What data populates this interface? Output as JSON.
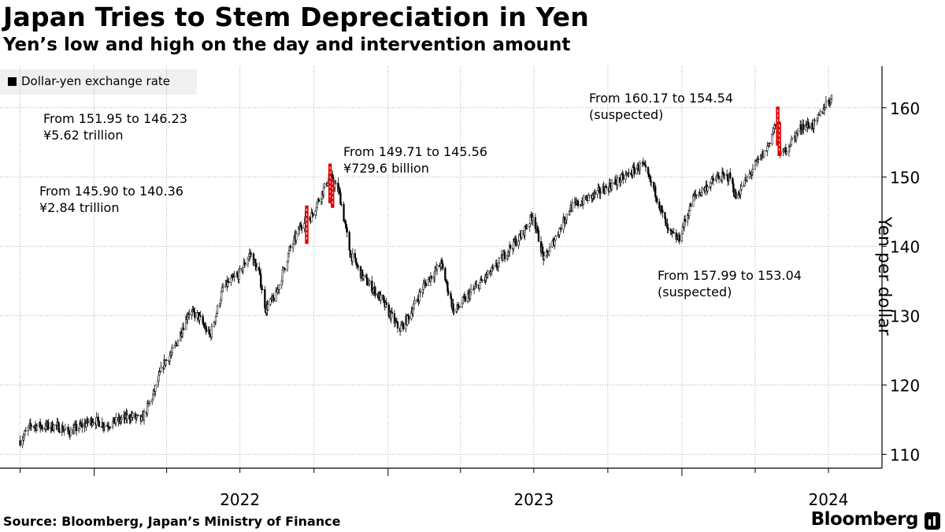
{
  "chart_data": {
    "type": "candlestick",
    "title": "Japan Tries to Stem Depreciation in Yen",
    "subtitle": "Yen’s low and high on the day and intervention amount",
    "legend": "Dollar-yen exchange rate",
    "ylabel": "Yen per dollar",
    "ylim": [
      108,
      166
    ],
    "yticks": [
      110,
      120,
      130,
      140,
      150,
      160
    ],
    "xticks": [
      "2022",
      "2023",
      "2024"
    ],
    "source": "Source: Bloomberg, Japan’s Ministry of Finance",
    "brand": "Bloomberg",
    "series_anchors": [
      [
        "2021-10-01",
        112
      ],
      [
        "2021-10-15",
        114.2
      ],
      [
        "2021-11-01",
        114.0
      ],
      [
        "2021-11-15",
        114.1
      ],
      [
        "2021-12-01",
        113.2
      ],
      [
        "2021-12-31",
        115.0
      ],
      [
        "2022-01-15",
        114.2
      ],
      [
        "2022-02-15",
        115.5
      ],
      [
        "2022-03-01",
        114.9
      ],
      [
        "2022-03-15",
        118.5
      ],
      [
        "2022-03-28",
        123.0
      ],
      [
        "2022-04-10",
        125.0
      ],
      [
        "2022-04-28",
        130.5
      ],
      [
        "2022-05-10",
        130.0
      ],
      [
        "2022-05-25",
        127.0
      ],
      [
        "2022-06-10",
        134.0
      ],
      [
        "2022-06-30",
        136.0
      ],
      [
        "2022-07-14",
        139.0
      ],
      [
        "2022-07-25",
        136.0
      ],
      [
        "2022-08-02",
        131.0
      ],
      [
        "2022-08-15",
        133.0
      ],
      [
        "2022-09-01",
        139.5
      ],
      [
        "2022-09-21",
        144.5
      ],
      [
        "2022-09-26",
        144.0
      ],
      [
        "2022-10-20",
        150.0
      ],
      [
        "2022-11-01",
        148.0
      ],
      [
        "2022-11-15",
        139.0
      ],
      [
        "2022-12-01",
        135.5
      ],
      [
        "2022-12-20",
        133.0
      ],
      [
        "2023-01-15",
        128.0
      ],
      [
        "2023-01-25",
        129.5
      ],
      [
        "2023-02-15",
        134.5
      ],
      [
        "2023-03-08",
        137.5
      ],
      [
        "2023-03-24",
        130.5
      ],
      [
        "2023-04-15",
        133.5
      ],
      [
        "2023-05-15",
        137.0
      ],
      [
        "2023-05-30",
        139.5
      ],
      [
        "2023-06-15",
        141.5
      ],
      [
        "2023-06-30",
        144.5
      ],
      [
        "2023-07-14",
        138.0
      ],
      [
        "2023-07-31",
        142.0
      ],
      [
        "2023-08-15",
        145.5
      ],
      [
        "2023-09-15",
        147.5
      ],
      [
        "2023-10-15",
        149.5
      ],
      [
        "2023-11-13",
        151.8
      ],
      [
        "2023-11-30",
        147.5
      ],
      [
        "2023-12-15",
        142.0
      ],
      [
        "2023-12-28",
        141.0
      ],
      [
        "2024-01-15",
        147.0
      ],
      [
        "2024-02-15",
        150.0
      ],
      [
        "2024-03-01",
        150.0
      ],
      [
        "2024-03-08",
        147.0
      ],
      [
        "2024-03-31",
        151.5
      ],
      [
        "2024-04-15",
        154.0
      ],
      [
        "2024-04-26",
        157.5
      ],
      [
        "2024-04-29",
        156.0
      ],
      [
        "2024-05-03",
        153.0
      ],
      [
        "2024-05-15",
        155.0
      ],
      [
        "2024-05-30",
        157.5
      ],
      [
        "2024-06-14",
        157.5
      ],
      [
        "2024-06-30",
        161.0
      ],
      [
        "2024-07-05",
        161.3
      ]
    ],
    "interventions": [
      {
        "date": "2022-09-22",
        "from": 145.9,
        "to": 140.36,
        "text1": "From 145.90 to 140.36",
        "text2": "¥2.84 trillion"
      },
      {
        "date": "2022-10-21",
        "from": 151.95,
        "to": 146.23,
        "text1": "From 151.95 to 146.23",
        "text2": "¥5.62 trillion"
      },
      {
        "date": "2022-10-24",
        "from": 149.71,
        "to": 145.56,
        "text1": "From 149.71 to 145.56",
        "text2": "¥729.6 billion"
      },
      {
        "date": "2024-04-29",
        "from": 160.17,
        "to": 154.54,
        "text1": "From 160.17 to 154.54",
        "text2": "(suspected)"
      },
      {
        "date": "2024-05-01",
        "from": 157.99,
        "to": 153.04,
        "text1": "From 157.99 to 153.04",
        "text2": "(suspected)"
      }
    ]
  },
  "colors": {
    "candle": "#000000",
    "intervention": "#e00000",
    "grid": "#b0b0b0",
    "axis": "#000000"
  }
}
